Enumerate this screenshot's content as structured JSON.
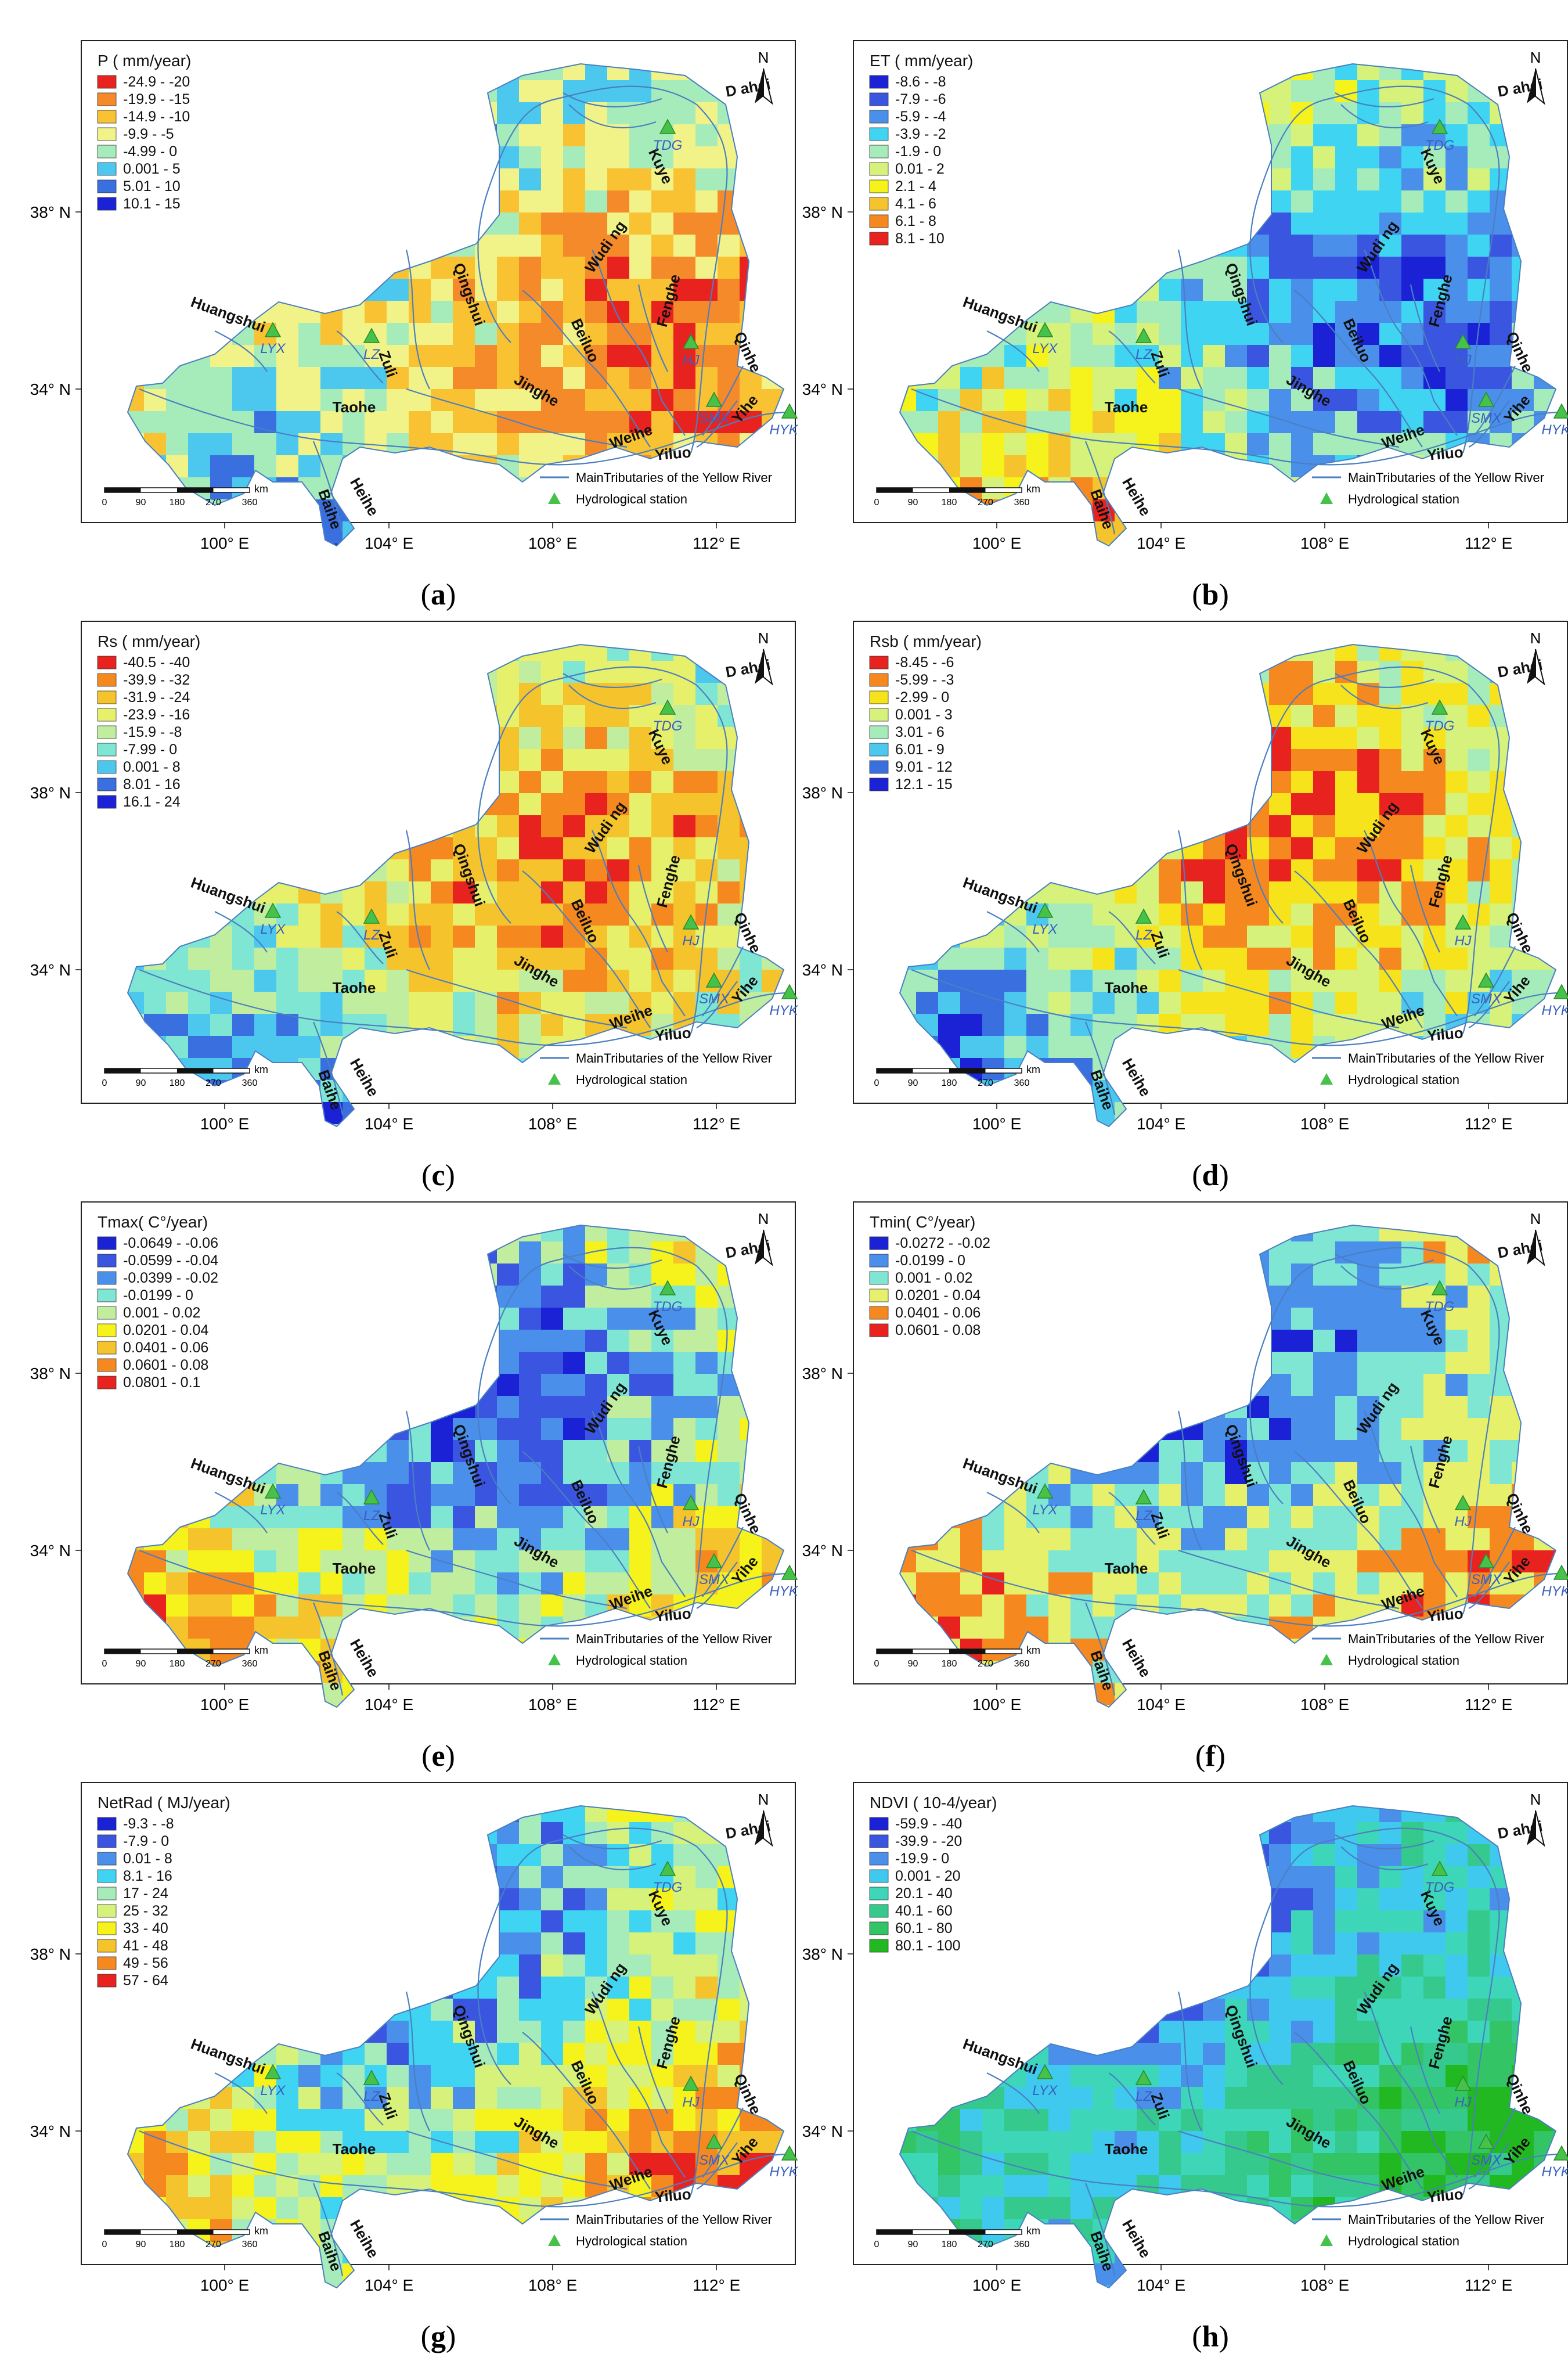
{
  "figure": {
    "station_markers": "green-triangle",
    "river_color": "#4a7fc1",
    "legend_bottom": {
      "line_label": "MainTributaries of the Yellow River",
      "station_label": "Hydrological station"
    },
    "scale_bar": {
      "ticks": [
        "0",
        "90",
        "180",
        "270",
        "360"
      ],
      "unit": "km"
    },
    "north_label": "N",
    "x_ticks": [
      "100° E",
      "104° E",
      "108° E",
      "112° E"
    ],
    "y_ticks": [
      "38° N",
      "34° N"
    ],
    "rivers": [
      "Huangshui",
      "Zuli",
      "Qingshui",
      "Wudi ng",
      "Kuye",
      "Beiluo",
      "Fenghe",
      "Jinghe",
      "Taohe",
      "Weihe",
      "Yiluo",
      "Qinhe",
      "Yihe",
      "Baihe",
      "Heihe",
      "D ahei"
    ],
    "stations": [
      "LYX",
      "LZ",
      "TDG",
      "HJ",
      "SMX",
      "HYK"
    ]
  },
  "panels": [
    {
      "caption": "a",
      "legend_title": "P ( mm/year)",
      "classes": [
        {
          "label": "-24.9 - -20",
          "color": "#e8231f"
        },
        {
          "label": "-19.9 - -15",
          "color": "#f58a2a"
        },
        {
          "label": "-14.9 - -10",
          "color": "#f9c233"
        },
        {
          "label": "-9.9 - -5",
          "color": "#f1f288"
        },
        {
          "label": "-4.99 - 0",
          "color": "#a6ecbb"
        },
        {
          "label": "0.001 - 5",
          "color": "#4cc8ef"
        },
        {
          "label": "5.01 - 10",
          "color": "#3a6fe0"
        },
        {
          "label": "10.1 - 15",
          "color": "#1b22d6"
        }
      ]
    },
    {
      "caption": "b",
      "legend_title": "ET ( mm/year)",
      "classes": [
        {
          "label": "-8.6 - -8",
          "color": "#1b22d6"
        },
        {
          "label": "-7.9 - -6",
          "color": "#3a55e0"
        },
        {
          "label": "-5.9 - -4",
          "color": "#4a8fea"
        },
        {
          "label": "-3.9 - -2",
          "color": "#3fd5f2"
        },
        {
          "label": "-1.9 - 0",
          "color": "#a6ecbb"
        },
        {
          "label": "0.01 - 2",
          "color": "#d6f27a"
        },
        {
          "label": "2.1 - 4",
          "color": "#f6f21c"
        },
        {
          "label": "4.1 - 6",
          "color": "#f5c32b"
        },
        {
          "label": "6.1 - 8",
          "color": "#f5891f"
        },
        {
          "label": "8.1 - 10",
          "color": "#e8231f"
        }
      ]
    },
    {
      "caption": "c",
      "legend_title": "Rs ( mm/year)",
      "classes": [
        {
          "label": "-40.5 - -40",
          "color": "#e8231f"
        },
        {
          "label": "-39.9 - -32",
          "color": "#f5891f"
        },
        {
          "label": "-31.9 - -24",
          "color": "#f5c32b"
        },
        {
          "label": "-23.9 - -16",
          "color": "#e7f06a"
        },
        {
          "label": "-15.9 - -8",
          "color": "#c1ee9e"
        },
        {
          "label": "-7.99 - 0",
          "color": "#7fe6d3"
        },
        {
          "label": "0.001 - 8",
          "color": "#4cc8ef"
        },
        {
          "label": "8.01 - 16",
          "color": "#3a6fe0"
        },
        {
          "label": "16.1 - 24",
          "color": "#1b22d6"
        }
      ]
    },
    {
      "caption": "d",
      "legend_title": "Rsb ( mm/year)",
      "classes": [
        {
          "label": "-8.45 - -6",
          "color": "#e8231f"
        },
        {
          "label": "-5.99 - -3",
          "color": "#f5891f"
        },
        {
          "label": "-2.99 - 0",
          "color": "#f6e31c"
        },
        {
          "label": "0.001 - 3",
          "color": "#d6f27a"
        },
        {
          "label": "3.01 - 6",
          "color": "#a6ecbb"
        },
        {
          "label": "6.01 - 9",
          "color": "#4cc8ef"
        },
        {
          "label": "9.01 - 12",
          "color": "#3a6fe0"
        },
        {
          "label": "12.1 - 15",
          "color": "#1b22d6"
        }
      ]
    },
    {
      "caption": "e",
      "legend_title": "Tmax( C°/year)",
      "classes": [
        {
          "label": "-0.0649 - -0.06",
          "color": "#1b22d6"
        },
        {
          "label": "-0.0599 - -0.04",
          "color": "#3a55e0"
        },
        {
          "label": "-0.0399 - -0.02",
          "color": "#4a8fea"
        },
        {
          "label": "-0.0199 - 0",
          "color": "#7fe6d3"
        },
        {
          "label": "0.001 - 0.02",
          "color": "#c1ee9e"
        },
        {
          "label": "0.0201 - 0.04",
          "color": "#f6f21c"
        },
        {
          "label": "0.0401 - 0.06",
          "color": "#f5c32b"
        },
        {
          "label": "0.0601 - 0.08",
          "color": "#f5891f"
        },
        {
          "label": "0.0801 - 0.1",
          "color": "#e8231f"
        }
      ]
    },
    {
      "caption": "f",
      "legend_title": "Tmin( C°/year)",
      "classes": [
        {
          "label": "-0.0272 - -0.02",
          "color": "#1b22d6"
        },
        {
          "label": "-0.0199 - 0",
          "color": "#4a8fea"
        },
        {
          "label": "0.001 - 0.02",
          "color": "#7fe6d3"
        },
        {
          "label": "0.0201 - 0.04",
          "color": "#e7f06a"
        },
        {
          "label": "0.0401 - 0.06",
          "color": "#f5891f"
        },
        {
          "label": "0.0601 - 0.08",
          "color": "#e8231f"
        }
      ]
    },
    {
      "caption": "g",
      "legend_title": "NetRad ( MJ/year)",
      "classes": [
        {
          "label": "-9.3 - -8",
          "color": "#1b22d6"
        },
        {
          "label": "-7.9 - 0",
          "color": "#3a55e0"
        },
        {
          "label": "0.01 - 8",
          "color": "#4a8fea"
        },
        {
          "label": "8.1 - 16",
          "color": "#3fd5f2"
        },
        {
          "label": "17 - 24",
          "color": "#a6ecbb"
        },
        {
          "label": "25 - 32",
          "color": "#d6f27a"
        },
        {
          "label": "33 - 40",
          "color": "#f6f21c"
        },
        {
          "label": "41 - 48",
          "color": "#f5c32b"
        },
        {
          "label": "49 - 56",
          "color": "#f5891f"
        },
        {
          "label": "57 - 64",
          "color": "#e8231f"
        }
      ]
    },
    {
      "caption": "h",
      "legend_title": "NDVI ( 10-4/year)",
      "classes": [
        {
          "label": "-59.9 - -40",
          "color": "#1b22d6"
        },
        {
          "label": "-39.9 - -20",
          "color": "#3a55e0"
        },
        {
          "label": "-19.9 - 0",
          "color": "#4a8fea"
        },
        {
          "label": "0.001 - 20",
          "color": "#3fc9ef"
        },
        {
          "label": "20.1 - 40",
          "color": "#3dd6b9"
        },
        {
          "label": "40.1 - 60",
          "color": "#35c98e"
        },
        {
          "label": "60.1 - 80",
          "color": "#33c466"
        },
        {
          "label": "80.1 - 100",
          "color": "#21b821"
        }
      ]
    }
  ]
}
